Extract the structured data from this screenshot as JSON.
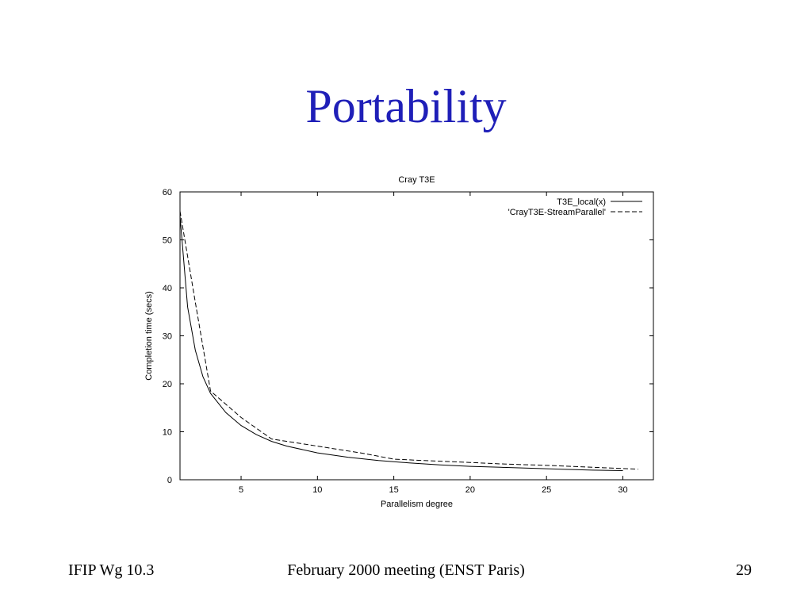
{
  "slide": {
    "title": "Portability"
  },
  "footer": {
    "left": "IFIP Wg 10.3",
    "center": "February 2000 meeting (ENST Paris)",
    "page_number": "29"
  },
  "chart_data": {
    "type": "line",
    "title": "Cray T3E",
    "xlabel": "Parallelism degree",
    "ylabel": "Completion time (secs)",
    "xlim": [
      1,
      32
    ],
    "ylim": [
      0,
      60
    ],
    "xticks": [
      5,
      10,
      15,
      20,
      25,
      30
    ],
    "yticks": [
      0,
      10,
      20,
      30,
      40,
      50,
      60
    ],
    "grid": false,
    "legend_position": "top-right",
    "series": [
      {
        "name": "T3E_local(x)",
        "style": "solid",
        "x": [
          1,
          1.5,
          2,
          2.5,
          3,
          4,
          5,
          6,
          7,
          8,
          10,
          12,
          14,
          16,
          18,
          20,
          22,
          24,
          26,
          28,
          30
        ],
        "y": [
          55,
          36,
          27,
          21.5,
          18,
          14,
          11.3,
          9.4,
          8.0,
          7.0,
          5.6,
          4.7,
          4.0,
          3.5,
          3.1,
          2.8,
          2.6,
          2.4,
          2.2,
          2.0,
          1.9
        ]
      },
      {
        "name": "'CrayT3E-StreamParallel'",
        "style": "dashed",
        "x": [
          1,
          2,
          3,
          5,
          7,
          10,
          13,
          15,
          17,
          20,
          22,
          25,
          28,
          31
        ],
        "y": [
          56,
          37,
          18.5,
          13,
          8.5,
          7,
          5.5,
          4.3,
          4.0,
          3.6,
          3.3,
          3.0,
          2.6,
          2.2
        ]
      }
    ]
  }
}
